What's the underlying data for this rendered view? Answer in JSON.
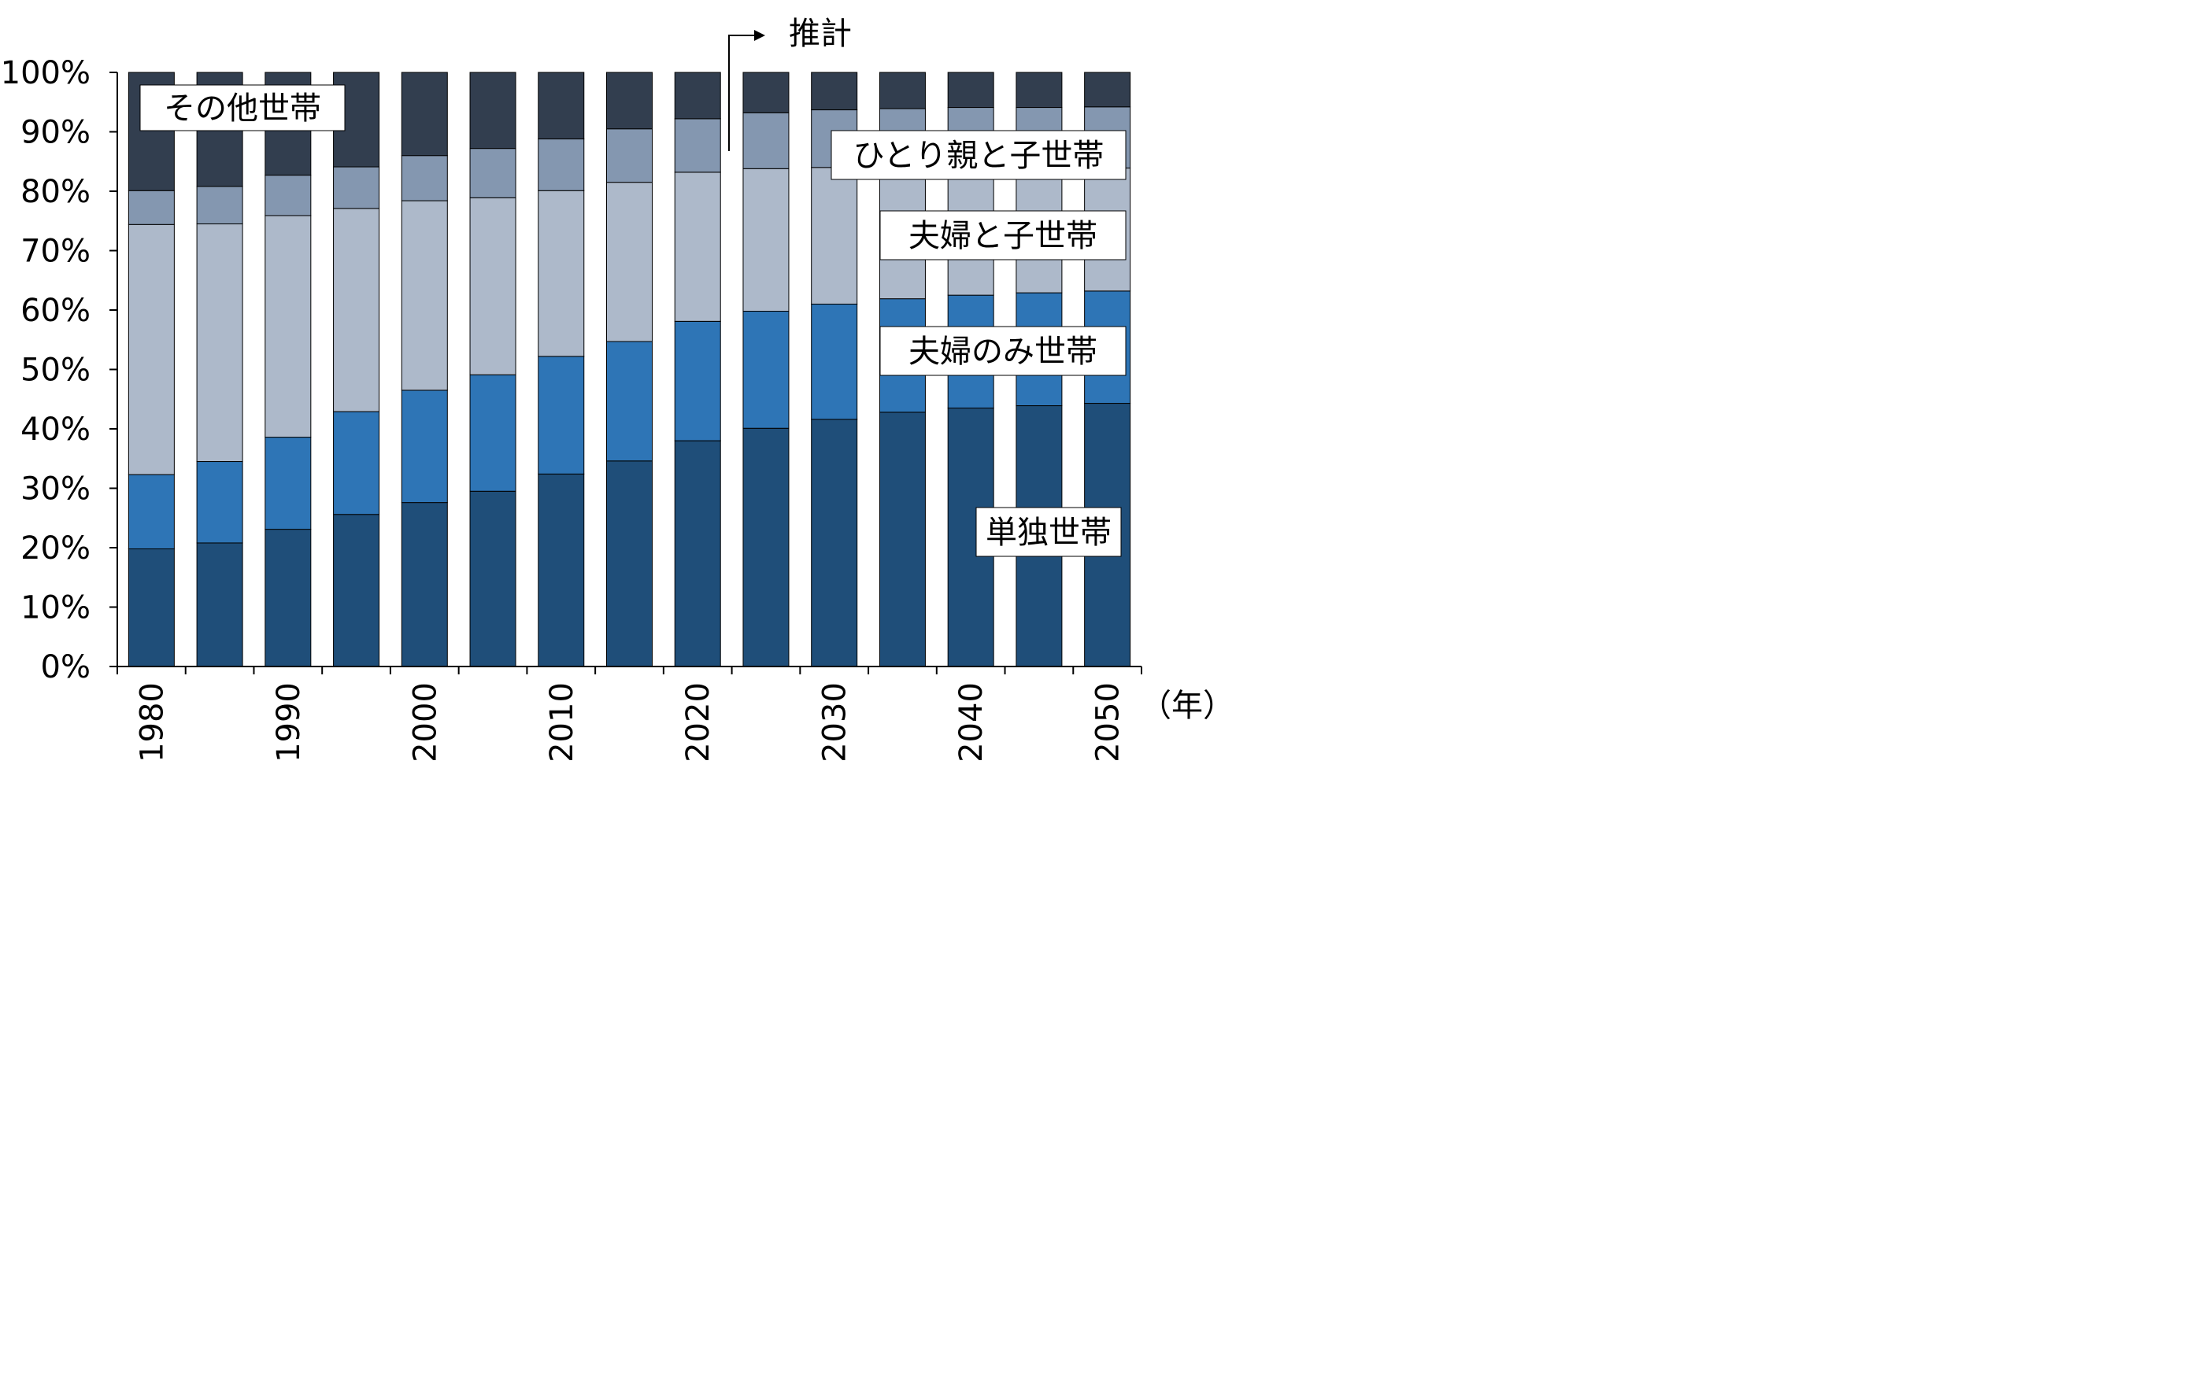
{
  "chart_data": {
    "type": "bar",
    "stacked": true,
    "x": [
      1980,
      1985,
      1990,
      1995,
      2000,
      2005,
      2010,
      2015,
      2020,
      2025,
      2030,
      2035,
      2040,
      2045,
      2050
    ],
    "x_tick_labels": [
      "1980",
      "1990",
      "2000",
      "2010",
      "2020",
      "2030",
      "2040",
      "2050"
    ],
    "x_unit_label": "（年）",
    "y_tick_labels": [
      "0%",
      "10%",
      "20%",
      "30%",
      "40%",
      "50%",
      "60%",
      "70%",
      "80%",
      "90%",
      "100%"
    ],
    "ylim": [
      0,
      100
    ],
    "projection_start": 2025,
    "projection_label": "推計",
    "series": [
      {
        "name": "単独世帯",
        "color": "#1f4e79",
        "values": [
          19.8,
          20.8,
          23.1,
          25.6,
          27.6,
          29.5,
          32.4,
          34.6,
          38.0,
          40.1,
          41.6,
          42.8,
          43.5,
          43.9,
          44.3
        ]
      },
      {
        "name": "夫婦のみ世帯",
        "color": "#2e75b6",
        "values": [
          12.5,
          13.7,
          15.5,
          17.3,
          18.9,
          19.6,
          19.8,
          20.1,
          20.1,
          19.7,
          19.4,
          19.1,
          19.0,
          19.0,
          18.9
        ]
      },
      {
        "name": "夫婦と子世帯",
        "color": "#adb9ca",
        "values": [
          42.1,
          40.0,
          37.3,
          34.2,
          31.9,
          29.8,
          27.9,
          26.8,
          25.1,
          24.0,
          23.0,
          22.0,
          21.5,
          21.0,
          20.7
        ]
      },
      {
        "name": "ひとり親と子世帯",
        "color": "#8497b0",
        "values": [
          5.7,
          6.3,
          6.8,
          7.0,
          7.6,
          8.3,
          8.7,
          9.0,
          9.0,
          9.4,
          9.7,
          10.0,
          10.1,
          10.2,
          10.3
        ]
      },
      {
        "name": "その他世帯",
        "color": "#323e4f",
        "values": [
          19.9,
          19.2,
          17.3,
          15.9,
          14.0,
          12.8,
          11.2,
          9.5,
          7.8,
          6.8,
          6.3,
          6.1,
          5.9,
          5.9,
          5.8
        ]
      }
    ]
  }
}
